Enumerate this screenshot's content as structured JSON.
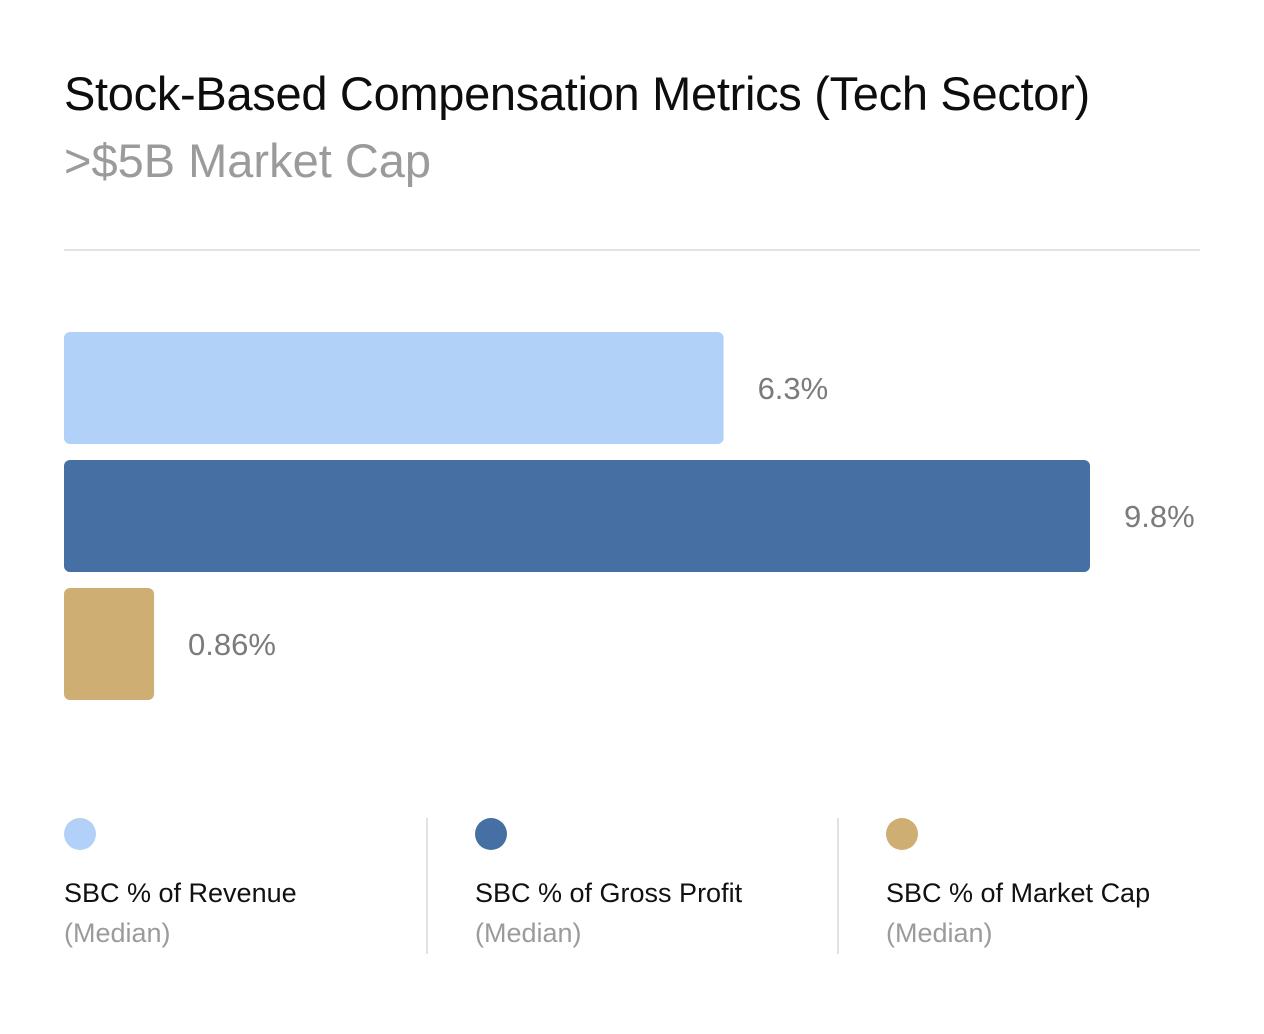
{
  "chart_data": {
    "type": "bar",
    "orientation": "horizontal",
    "title": "Stock-Based Compensation Metrics (Tech Sector)",
    "subtitle": ">$5B Market Cap",
    "categories": [
      "SBC % of Revenue",
      "SBC % of Gross Profit",
      "SBC % of Market Cap"
    ],
    "values": [
      6.3,
      9.8,
      0.86
    ],
    "data_labels": [
      "6.3%",
      "9.8%",
      "0.86%"
    ],
    "colors": [
      "#b2d1f8",
      "#466fa3",
      "#cfae74"
    ],
    "xlim": [
      0,
      9.8
    ],
    "grid": false,
    "legend": [
      {
        "label": "SBC % of Revenue",
        "sub": "(Median)",
        "color": "#b2d1f8"
      },
      {
        "label": "SBC % of Gross Profit",
        "sub": "(Median)",
        "color": "#466fa3"
      },
      {
        "label": "SBC % of Market Cap",
        "sub": "(Median)",
        "color": "#cfae74"
      }
    ],
    "legend_position": "bottom"
  }
}
